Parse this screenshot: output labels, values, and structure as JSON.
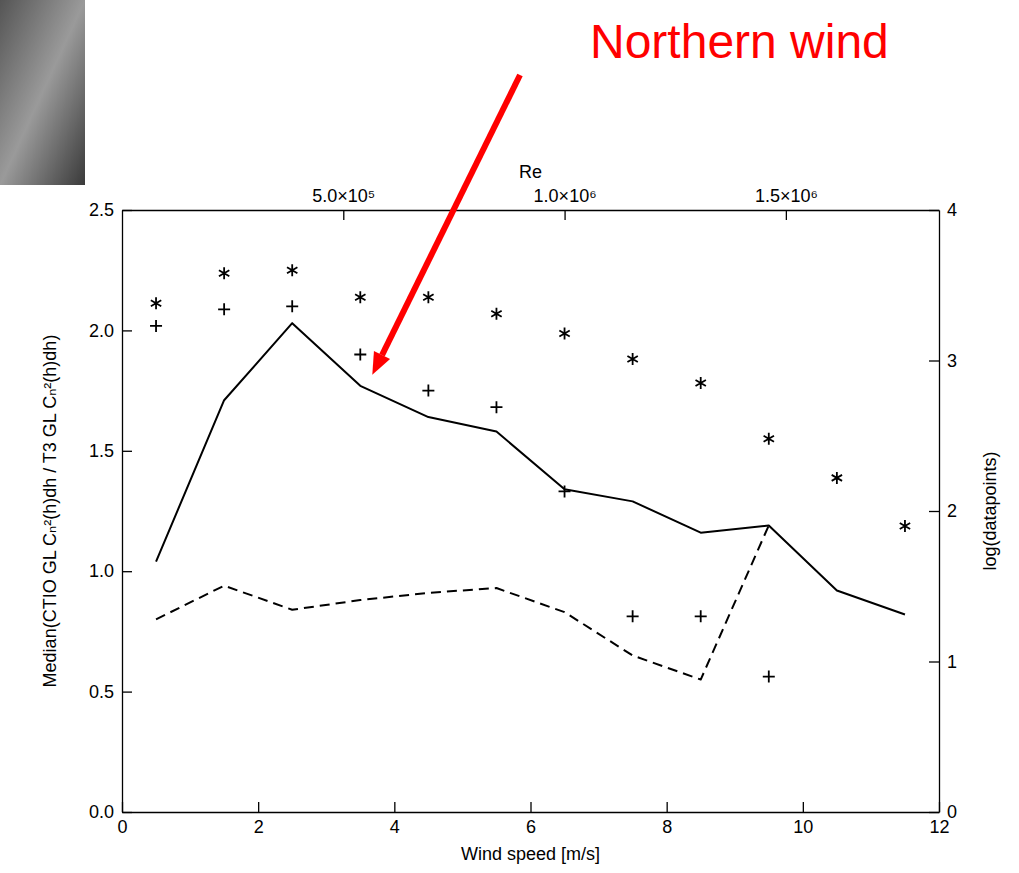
{
  "chart_data": {
    "type": "line",
    "x": [
      0.5,
      1.5,
      2.5,
      3.5,
      4.5,
      5.5,
      6.5,
      7.5,
      8.5,
      9.5,
      10.5,
      11.5
    ],
    "xlim": [
      0,
      12
    ],
    "xticks": [
      0,
      2,
      4,
      6,
      8,
      10,
      12
    ],
    "xlabel": "Wind speed [m/s]",
    "x2lim": [
      0,
      1846000
    ],
    "x2ticks": [
      {
        "value": 500000,
        "label": "5.0×10⁵"
      },
      {
        "value": 1000000,
        "label": "1.0×10⁶"
      },
      {
        "value": 1500000,
        "label": "1.5×10⁶"
      }
    ],
    "x2label": "Re",
    "ylim": [
      0,
      2.5
    ],
    "yticks": [
      {
        "value": 0,
        "label": "0.0"
      },
      {
        "value": 0.5,
        "label": "0.5"
      },
      {
        "value": 1,
        "label": "1.0"
      },
      {
        "value": 1.5,
        "label": "1.5"
      },
      {
        "value": 2,
        "label": "2.0"
      },
      {
        "value": 2.5,
        "label": "2.5"
      }
    ],
    "ylabel": "Median(CTIO GL Cₙ²(h)dh / T3 GL Cₙ²(h)dh)",
    "y2lim": [
      0,
      4
    ],
    "y2ticks": [
      0,
      1,
      2,
      3,
      4
    ],
    "y2label": "log(datapoints)",
    "series": [
      {
        "type": "line",
        "color": "#000000",
        "line_style": "solid",
        "values": [
          1.04,
          1.71,
          2.03,
          1.77,
          1.64,
          1.58,
          1.34,
          1.29,
          1.16,
          1.19,
          0.92,
          0.82
        ]
      },
      {
        "type": "line",
        "color": "#000000",
        "line_style": "dashed",
        "values": [
          0.8,
          0.94,
          0.84,
          0.88,
          0.91,
          0.93,
          0.83,
          0.65,
          0.55,
          1.19,
          null,
          null
        ]
      },
      {
        "type": "scatter",
        "color": "#000000",
        "marker": "asterisk",
        "axis": "y2",
        "values": [
          3.38,
          3.58,
          3.6,
          3.42,
          3.42,
          3.31,
          3.18,
          3.01,
          2.85,
          2.48,
          2.22,
          1.9
        ]
      },
      {
        "type": "scatter",
        "color": "#000000",
        "marker": "plus",
        "axis": "y2",
        "values": [
          3.23,
          3.34,
          3.36,
          3.04,
          2.8,
          2.69,
          2.13,
          1.3,
          1.3,
          0.9,
          null,
          null
        ]
      }
    ],
    "annotations": [
      {
        "text": "Northern wind",
        "x": 3.5,
        "y": 1.77,
        "color": "#ff0000"
      }
    ]
  }
}
